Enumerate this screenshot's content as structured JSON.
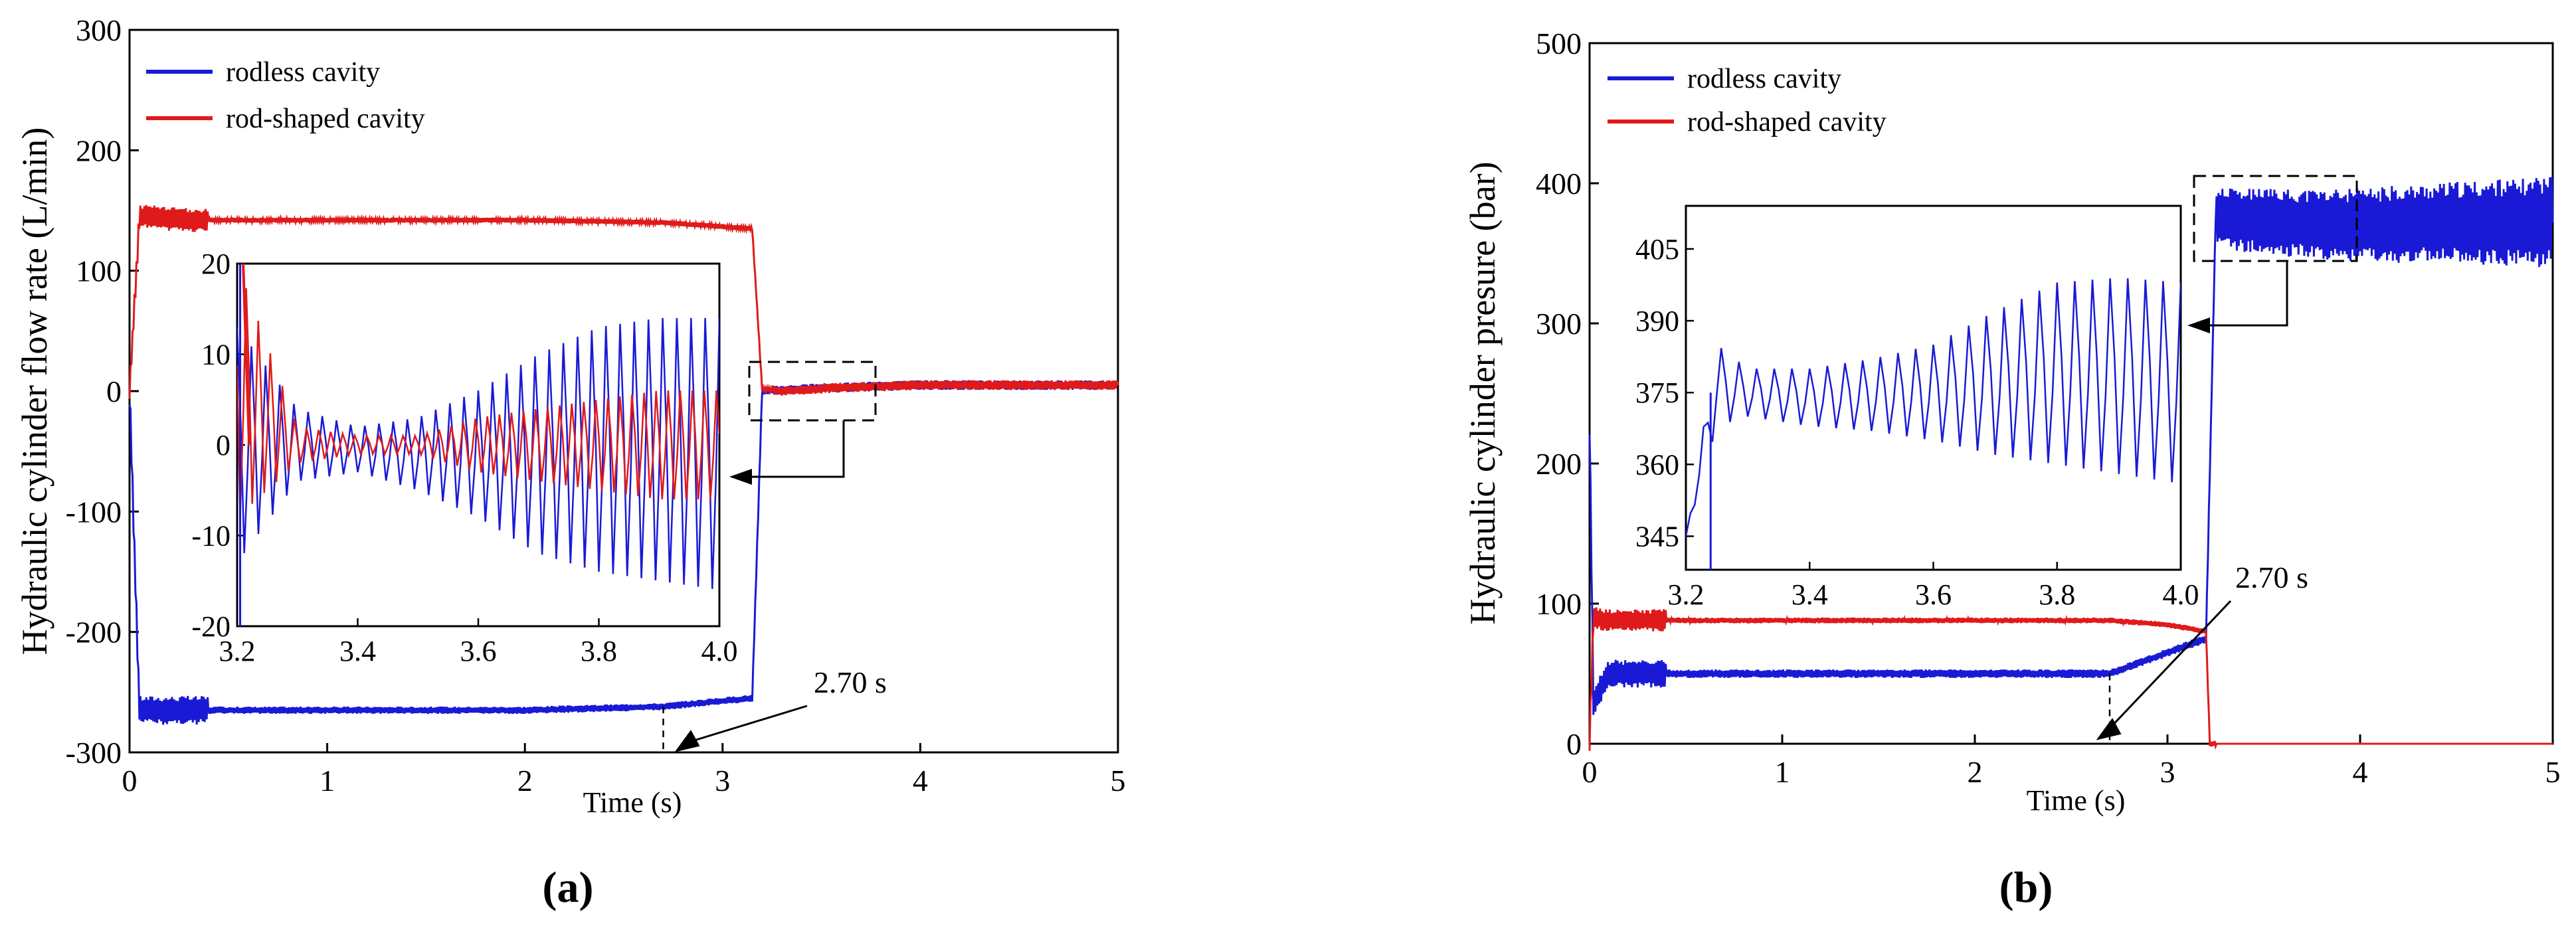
{
  "colors": {
    "rodless": "#1a1ad6",
    "rod": "#e01a1a"
  },
  "chart_data": [
    {
      "type": "line",
      "panel_label": "(a)",
      "xlabel": "Time (s)",
      "ylabel": "Hydraulic cylinder flow rate (L/min)",
      "xlim": [
        0,
        5
      ],
      "ylim": [
        -300,
        300
      ],
      "xticks": [
        "0",
        "1",
        "2",
        "3",
        "4",
        "5"
      ],
      "yticks": [
        "-300",
        "-200",
        "-100",
        "0",
        "100",
        "200",
        "300"
      ],
      "annotation": "2.70 s",
      "annotation_x": 2.7,
      "legend": [
        "rodless cavity",
        "rod-shaped cavity"
      ],
      "series": [
        {
          "name": "rodless cavity",
          "x": [
            0,
            0.05,
            0.3,
            1,
            2,
            2.7,
            3.15,
            3.2,
            3.3,
            3.6,
            4,
            5
          ],
          "values": [
            0,
            -265,
            -265,
            -265,
            -265,
            -262,
            -255,
            0,
            1,
            3,
            5,
            5
          ]
        },
        {
          "name": "rod-shaped cavity",
          "x": [
            0,
            0.05,
            0.3,
            1,
            2,
            2.7,
            3.15,
            3.2,
            3.3,
            3.6,
            4,
            5
          ],
          "values": [
            0,
            145,
            142,
            142,
            142,
            140,
            135,
            2,
            0,
            3,
            5,
            5
          ]
        }
      ],
      "inset": {
        "xlim": [
          3.2,
          4.0
        ],
        "ylim": [
          -20,
          20
        ],
        "xticks": [
          "3.2",
          "3.4",
          "3.6",
          "3.8",
          "4.0"
        ],
        "yticks": [
          "-20",
          "-10",
          "0",
          "10",
          "20"
        ],
        "rodless_envelope": {
          "x": [
            3.2,
            3.3,
            3.4,
            3.5,
            3.6,
            3.7,
            3.8,
            3.9,
            4.0
          ],
          "upper": [
            13,
            4,
            2,
            3,
            6,
            10,
            13,
            14,
            14
          ],
          "lower": [
            -13,
            -4,
            -3,
            -5,
            -8,
            -12,
            -14,
            -15,
            -16
          ]
        },
        "rod_envelope": {
          "x": [
            3.2,
            3.3,
            3.4,
            3.5,
            3.6,
            3.7,
            3.8,
            3.9,
            4.0
          ],
          "upper": [
            20,
            2,
            1,
            1,
            3,
            4,
            5,
            6,
            6
          ],
          "lower": [
            -8,
            -2,
            -1,
            -1,
            -3,
            -4,
            -5,
            -6,
            -6
          ]
        }
      }
    },
    {
      "type": "line",
      "panel_label": "(b)",
      "xlabel": "Time (s)",
      "ylabel": "Hydraulic cylinder presure (bar)",
      "xlim": [
        0,
        5
      ],
      "ylim": [
        0,
        500
      ],
      "xticks": [
        "0",
        "1",
        "2",
        "3",
        "4",
        "5"
      ],
      "yticks": [
        "0",
        "100",
        "200",
        "300",
        "400",
        "500"
      ],
      "annotation": "2.70 s",
      "annotation_x": 2.7,
      "legend": [
        "rodless cavity",
        "rod-shaped cavity"
      ],
      "series": [
        {
          "name": "rodless cavity",
          "x": [
            0,
            0.02,
            0.1,
            0.5,
            1,
            2,
            2.7,
            3.0,
            3.2,
            3.25,
            3.6,
            4,
            4.5,
            5
          ],
          "values": [
            230,
            30,
            50,
            50,
            50,
            50,
            50,
            65,
            75,
            375,
            372,
            370,
            372,
            372
          ]
        },
        {
          "name": "rod-shaped cavity",
          "x": [
            0,
            0.02,
            0.1,
            0.5,
            1,
            2,
            2.7,
            3.0,
            3.2,
            3.22,
            3.3,
            5
          ],
          "values": [
            0,
            90,
            88,
            88,
            88,
            88,
            88,
            85,
            80,
            0,
            0,
            0
          ]
        }
      ],
      "inset": {
        "xlim": [
          3.2,
          4.0
        ],
        "ylim": [
          338,
          414
        ],
        "xticks": [
          "3.2",
          "3.4",
          "3.6",
          "3.8",
          "4.0"
        ],
        "yticks": [
          "345",
          "360",
          "375",
          "390",
          "405"
        ],
        "rodless_envelope": {
          "x": [
            3.2,
            3.25,
            3.3,
            3.4,
            3.5,
            3.6,
            3.7,
            3.8,
            3.9,
            4.0
          ],
          "upper": [
            345,
            385,
            380,
            380,
            382,
            385,
            392,
            398,
            399,
            398
          ],
          "lower": [
            345,
            368,
            370,
            368,
            367,
            365,
            362,
            360,
            358,
            356
          ]
        }
      }
    }
  ]
}
